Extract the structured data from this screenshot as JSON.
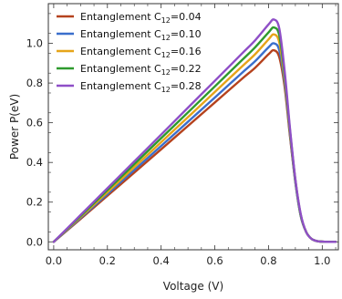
{
  "chart_data": {
    "type": "line",
    "title": "",
    "xlabel": "Voltage (V)",
    "ylabel": "Power P(eV)",
    "xlim": [
      -0.02,
      1.06
    ],
    "ylim": [
      -0.04,
      1.2
    ],
    "xticks": [
      0.0,
      0.2,
      0.4,
      0.6,
      0.8,
      1.0
    ],
    "xtick_labels": [
      "0.0",
      "0.2",
      "0.4",
      "0.6",
      "0.8",
      "1.0"
    ],
    "yticks": [
      0.0,
      0.2,
      0.4,
      0.6,
      0.8,
      1.0
    ],
    "ytick_labels": [
      "0.0",
      "0.2",
      "0.4",
      "0.6",
      "0.8",
      "1.0"
    ],
    "grid": false,
    "legend_position": "top-left",
    "x": [
      0.0,
      0.1,
      0.2,
      0.3,
      0.4,
      0.5,
      0.6,
      0.7,
      0.75,
      0.8,
      0.82,
      0.84,
      0.86,
      0.88,
      0.9,
      0.92,
      0.94,
      0.96,
      0.98,
      1.0,
      1.02,
      1.05
    ],
    "series": [
      {
        "name_prefix": "Entanglement C",
        "name_subscript": "12",
        "name_suffix": "=0.04",
        "color": "#b5421d",
        "values": [
          0.0,
          0.115,
          0.232,
          0.349,
          0.466,
          0.584,
          0.702,
          0.82,
          0.877,
          0.945,
          0.965,
          0.93,
          0.78,
          0.53,
          0.3,
          0.13,
          0.05,
          0.015,
          0.004,
          0.001,
          0.0,
          0.0
        ]
      },
      {
        "name_prefix": "Entanglement C",
        "name_subscript": "12",
        "name_suffix": "=0.10",
        "color": "#3a6fcc",
        "values": [
          0.0,
          0.12,
          0.241,
          0.362,
          0.483,
          0.605,
          0.727,
          0.85,
          0.91,
          0.98,
          1.0,
          0.965,
          0.8,
          0.54,
          0.3,
          0.13,
          0.05,
          0.015,
          0.004,
          0.001,
          0.0,
          0.0
        ]
      },
      {
        "name_prefix": "Entanglement C",
        "name_subscript": "12",
        "name_suffix": "=0.16",
        "color": "#e6a419",
        "values": [
          0.0,
          0.125,
          0.25,
          0.376,
          0.502,
          0.628,
          0.755,
          0.882,
          0.945,
          1.02,
          1.045,
          1.005,
          0.82,
          0.55,
          0.31,
          0.135,
          0.05,
          0.015,
          0.004,
          0.001,
          0.0,
          0.0
        ]
      },
      {
        "name_prefix": "Entanglement C",
        "name_subscript": "12",
        "name_suffix": "=0.22",
        "color": "#2e9a2e",
        "values": [
          0.0,
          0.13,
          0.261,
          0.391,
          0.522,
          0.652,
          0.783,
          0.914,
          0.98,
          1.055,
          1.08,
          1.04,
          0.84,
          0.56,
          0.31,
          0.135,
          0.05,
          0.015,
          0.004,
          0.001,
          0.0,
          0.0
        ]
      },
      {
        "name_prefix": "Entanglement C",
        "name_subscript": "12",
        "name_suffix": "=0.28",
        "color": "#8f4fc7",
        "values": [
          0.0,
          0.135,
          0.27,
          0.405,
          0.54,
          0.676,
          0.811,
          0.947,
          1.015,
          1.095,
          1.12,
          1.075,
          0.86,
          0.57,
          0.315,
          0.14,
          0.05,
          0.015,
          0.004,
          0.001,
          0.0,
          0.0
        ]
      }
    ]
  }
}
